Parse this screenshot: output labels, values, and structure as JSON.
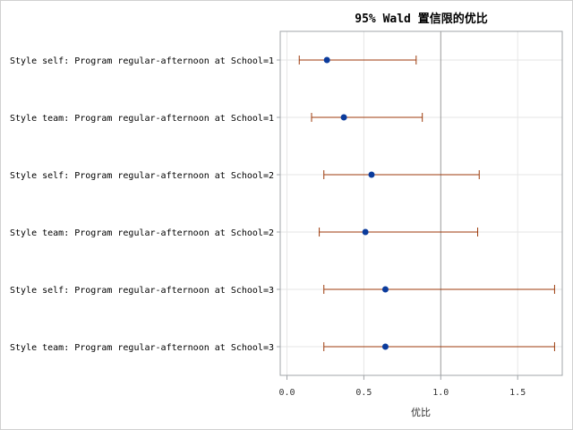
{
  "chart_data": {
    "type": "forest",
    "title": "95% Wald 置信限的优比",
    "xlabel": "优比",
    "ylabel": "",
    "xlim": [
      -0.04,
      1.79
    ],
    "xticks": [
      0.0,
      0.5,
      1.0,
      1.5
    ],
    "xtick_labels": [
      "0.0",
      "0.5",
      "1.0",
      "1.5"
    ],
    "reference_line": 1.0,
    "grid": true,
    "categories": [
      "Style self: Program regular-afternoon at School=1",
      "Style team: Program regular-afternoon at School=1",
      "Style self: Program regular-afternoon at School=2",
      "Style team: Program regular-afternoon at School=2",
      "Style self: Program regular-afternoon at School=3",
      "Style team: Program regular-afternoon at School=3"
    ],
    "estimates": [
      0.26,
      0.37,
      0.55,
      0.51,
      0.64,
      0.64
    ],
    "lower": [
      0.08,
      0.16,
      0.24,
      0.21,
      0.24,
      0.24
    ],
    "upper": [
      0.84,
      0.88,
      1.25,
      1.24,
      1.74,
      1.74
    ],
    "colors": {
      "marker": "#0b3b9c",
      "interval": "#9c3a0b",
      "refline": "#999999",
      "grid": "#e6e6e6",
      "frame": "#a0a4a8"
    }
  }
}
